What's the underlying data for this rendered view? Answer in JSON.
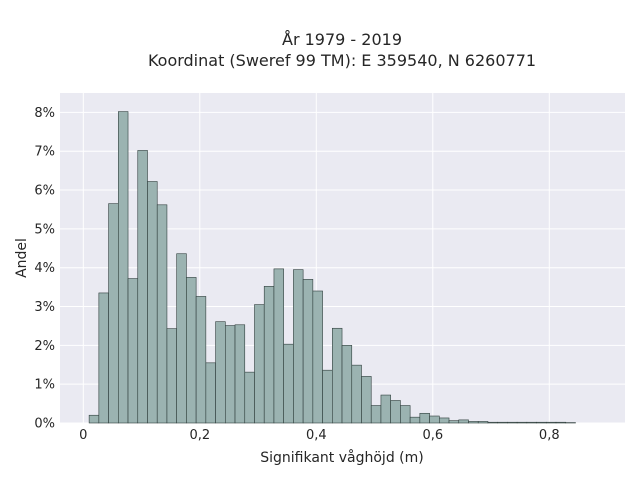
{
  "chart_data": {
    "type": "bar",
    "title_lines": [
      "År 1979 - 2019",
      "Koordinat (Sweref 99 TM): E 359540, N 6260771"
    ],
    "xlabel": "Signifikant våghöjd (m)",
    "ylabel": "Andel",
    "xlim": [
      -0.04,
      0.93
    ],
    "ylim": [
      0,
      8.5
    ],
    "x_ticks": [
      0,
      0.2,
      0.4,
      0.6,
      0.8
    ],
    "x_tick_labels": [
      "0",
      "0,2",
      "0,4",
      "0,6",
      "0,8"
    ],
    "y_ticks": [
      0,
      1,
      2,
      3,
      4,
      5,
      6,
      7,
      8
    ],
    "y_tick_labels": [
      "0%",
      "1%",
      "2%",
      "3%",
      "4%",
      "5%",
      "6%",
      "7%",
      "8%"
    ],
    "y_unit": "%",
    "grid": true,
    "bin_width": 0.0167,
    "bin_start": 0.01,
    "values": [
      0.2,
      3.35,
      5.65,
      8.02,
      3.72,
      7.02,
      6.22,
      5.62,
      2.43,
      4.36,
      3.75,
      3.26,
      1.55,
      2.61,
      2.51,
      2.53,
      1.31,
      3.05,
      3.52,
      3.97,
      2.03,
      3.95,
      3.7,
      3.4,
      1.36,
      2.44,
      2.0,
      1.49,
      1.2,
      0.45,
      0.72,
      0.58,
      0.45,
      0.15,
      0.25,
      0.18,
      0.13,
      0.06,
      0.08,
      0.04,
      0.04,
      0.02,
      0.02,
      0.02,
      0.02,
      0.02,
      0.02,
      0.02,
      0.02,
      0.01
    ],
    "colors": {
      "bar_fill": "#9bb3b1",
      "bar_edge": "#2f3e3c",
      "plot_bg": "#eaeaf2",
      "grid": "#ffffff"
    }
  }
}
